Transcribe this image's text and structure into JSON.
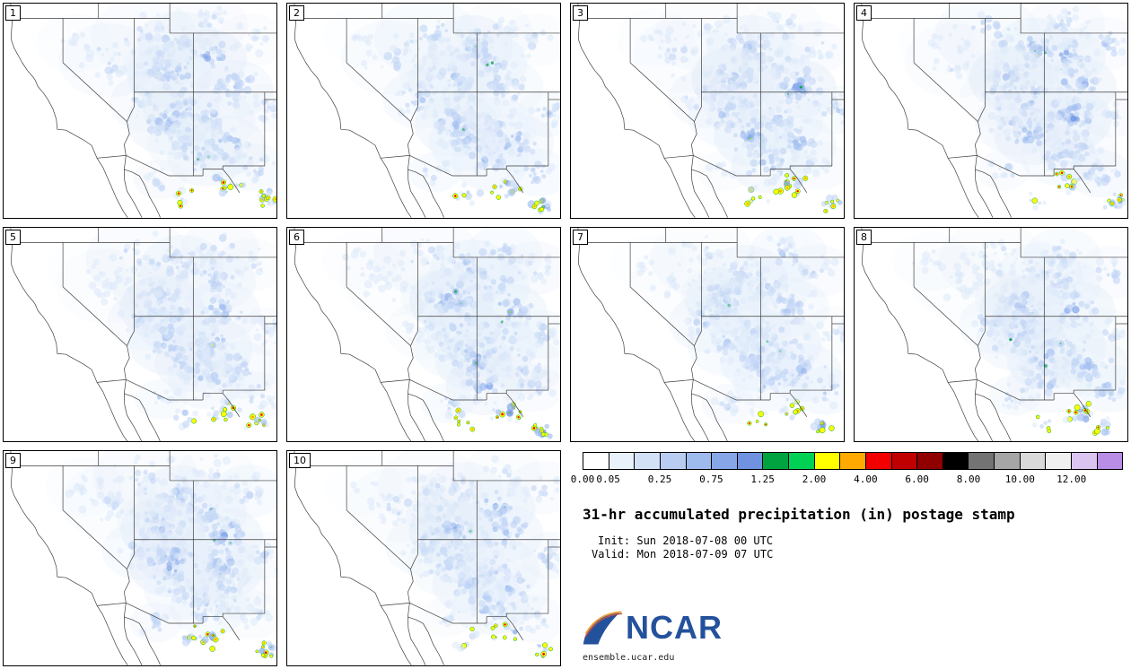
{
  "figure": {
    "title": "31-hr accumulated precipitation (in) postage stamp",
    "init_line": "Init: Sun 2018-07-08 00 UTC",
    "valid_line": "Valid: Mon 2018-07-09 07 UTC"
  },
  "branding": {
    "logo_text": "NCAR",
    "url": "ensemble.ucar.edu",
    "ncar_blue": "#24519c"
  },
  "panels": [
    {
      "label": "1"
    },
    {
      "label": "2"
    },
    {
      "label": "3"
    },
    {
      "label": "4"
    },
    {
      "label": "5"
    },
    {
      "label": "6"
    },
    {
      "label": "7"
    },
    {
      "label": "8"
    },
    {
      "label": "9"
    },
    {
      "label": "10"
    }
  ],
  "colorbar": {
    "tick_labels": [
      "0.00",
      "0.05",
      "0.25",
      "0.75",
      "1.25",
      "2.00",
      "4.00",
      "6.00",
      "8.00",
      "10.00",
      "12.00"
    ],
    "tick_positions": [
      0,
      1,
      3,
      5,
      7,
      9,
      11,
      13,
      15,
      17,
      19
    ],
    "segments": [
      "#ffffff",
      "#e9f1fb",
      "#d3e1f7",
      "#b9cdf2",
      "#9fbaed",
      "#87a6e7",
      "#7093e1",
      "#00a33f",
      "#00d155",
      "#ffff00",
      "#ffaa00",
      "#f20000",
      "#c00000",
      "#900000",
      "#000000",
      "#737373",
      "#a6a6a6",
      "#d9d9d9",
      "#f0f0f0",
      "#dcc4f0",
      "#b98ce6"
    ]
  },
  "map_palette": {
    "wash": "#e4eefb",
    "blues": [
      "#dce9fa",
      "#c2d5f6",
      "#a3bff0",
      "#86a7ea",
      "#6d93e3"
    ],
    "green": "#00a33f",
    "yellow": "#ffff00",
    "orange": "#ffaa00",
    "red": "#f20000",
    "border": "#3c3c3c"
  },
  "chart_data": {
    "type": "heatmap",
    "title": "31-hr accumulated precipitation (in) postage stamp",
    "variable": "accumulated precipitation",
    "units": "in",
    "accumulation_hours": 31,
    "init": "Sun 2018-07-08 00 UTC",
    "valid": "Mon 2018-07-09 07 UTC",
    "ensemble_members": [
      "1",
      "2",
      "3",
      "4",
      "5",
      "6",
      "7",
      "8",
      "9",
      "10"
    ],
    "panel_grid": "10 postage-stamp map panels (4 per row), legend in bottom-right quadrant",
    "region": "southwestern United States and northern Mexico",
    "colorbar_ticks_in": [
      0.0,
      0.05,
      0.25,
      0.75,
      1.25,
      2.0,
      4.0,
      6.0,
      8.0,
      10.0,
      12.0
    ],
    "colorbar_colors": [
      "#ffffff",
      "#e9f1fb",
      "#d3e1f7",
      "#b9cdf2",
      "#9fbaed",
      "#87a6e7",
      "#7093e1",
      "#00a33f",
      "#00d155",
      "#ffff00",
      "#ffaa00",
      "#f20000",
      "#c00000",
      "#900000",
      "#000000",
      "#737373",
      "#a6a6a6",
      "#d9d9d9",
      "#f0f0f0",
      "#dcc4f0",
      "#b98ce6"
    ],
    "legend_position": "bottom-right",
    "source": "ensemble.ucar.edu"
  }
}
